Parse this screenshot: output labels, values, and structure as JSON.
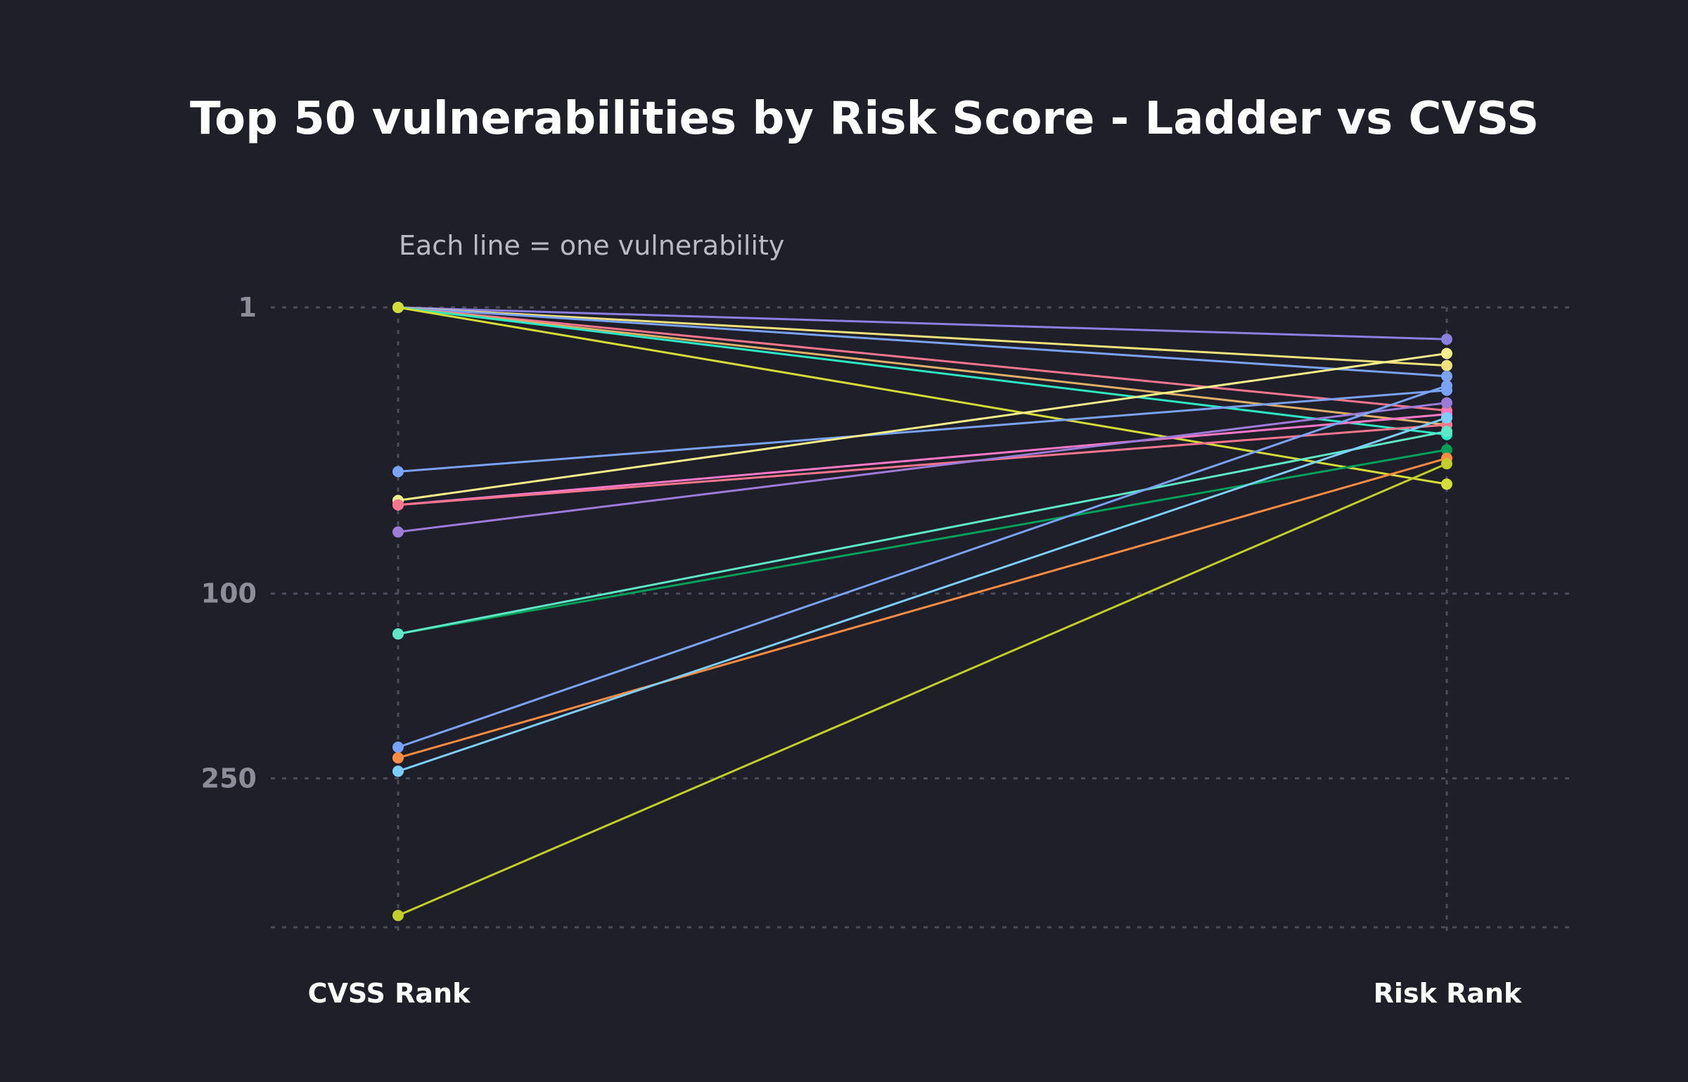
{
  "chart_data": {
    "type": "line",
    "title": "Top 50 vulnerabilities by Risk Score - Ladder vs CVSS",
    "subtitle": "Each line = one vulnerability",
    "categories": [
      "CVSS Rank",
      "Risk Rank"
    ],
    "y_ticks": [
      {
        "value": 1,
        "label": "1"
      },
      {
        "value": 100,
        "label": "100"
      },
      {
        "value": 250,
        "label": "250"
      }
    ],
    "y_scale": "sqrt",
    "ylim": [
      1,
      420
    ],
    "y_reversed": true,
    "grid": true,
    "series": [
      {
        "color": "#8b7fe0",
        "values": [
          1,
          4
        ]
      },
      {
        "color": "#f0e27a",
        "values": [
          1,
          8
        ]
      },
      {
        "color": "#7aa2f7",
        "values": [
          1,
          10
        ]
      },
      {
        "color": "#f7768e",
        "values": [
          1,
          18
        ]
      },
      {
        "color": "#e0af68",
        "values": [
          1,
          22
        ]
      },
      {
        "color": "#2ee8c4",
        "values": [
          1,
          25
        ]
      },
      {
        "color": "#d4dc38",
        "values": [
          1,
          43
        ]
      },
      {
        "color": "#7aa2f7",
        "values": [
          38,
          13
        ]
      },
      {
        "color": "#f5f08a",
        "values": [
          50,
          6
        ]
      },
      {
        "color": "#ff79c6",
        "values": [
          52,
          19
        ]
      },
      {
        "color": "#f7768e",
        "values": [
          52,
          22
        ]
      },
      {
        "color": "#9d7cd8",
        "values": [
          65,
          16
        ]
      },
      {
        "color": "#00a05a",
        "values": [
          127,
          30
        ]
      },
      {
        "color": "#5fe8c8",
        "values": [
          127,
          24
        ]
      },
      {
        "color": "#7aa2f7",
        "values": [
          220,
          12
        ]
      },
      {
        "color": "#ff8c42",
        "values": [
          230,
          33
        ]
      },
      {
        "color": "#7dcfff",
        "values": [
          243,
          20
        ]
      },
      {
        "color": "#c2ce2a",
        "values": [
          405,
          35
        ]
      }
    ]
  }
}
